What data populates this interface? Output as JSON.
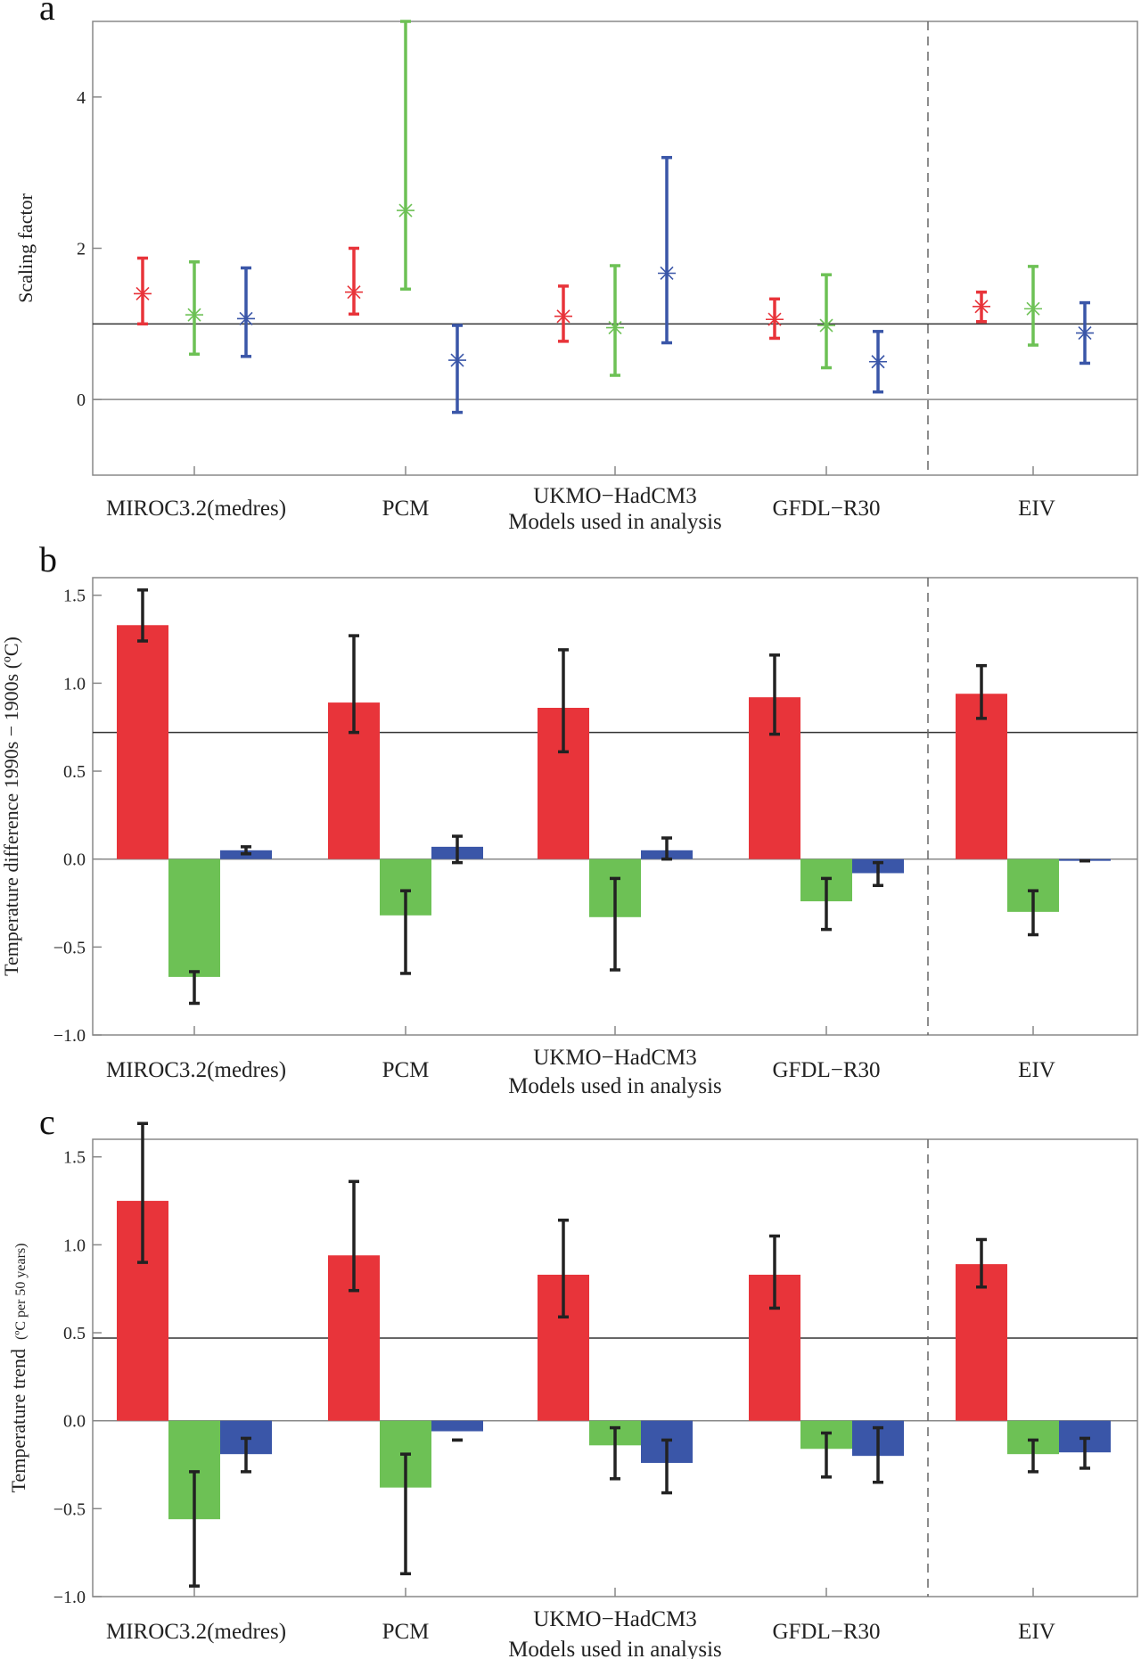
{
  "colors": {
    "red": "#e8343a",
    "green": "#6dc155",
    "blue": "#3a56a8",
    "err": "#222222"
  },
  "chart_data": [
    {
      "panel": "a",
      "type": "scatter",
      "ylabel": "Scaling factor",
      "xlabel": "Models used in analysis",
      "categories": [
        "MIROC3.2(medres)",
        "PCM",
        "UKMO−HadCM3",
        "GFDL−R30",
        "EIV"
      ],
      "ylim": [
        -1,
        5
      ],
      "yticks": [
        0,
        2,
        4
      ],
      "reference_lines": [
        0,
        1
      ],
      "series": [
        {
          "color": "red",
          "values": [
            1.4,
            1.42,
            1.1,
            1.06,
            1.23
          ],
          "lower": [
            1.0,
            1.13,
            0.77,
            0.81,
            1.03
          ],
          "upper": [
            1.87,
            2.0,
            1.5,
            1.33,
            1.42
          ]
        },
        {
          "color": "green",
          "values": [
            1.12,
            2.5,
            0.95,
            0.98,
            1.2
          ],
          "lower": [
            0.6,
            1.46,
            0.32,
            0.42,
            0.72
          ],
          "upper": [
            1.82,
            5.0,
            1.77,
            1.65,
            1.76
          ]
        },
        {
          "color": "blue",
          "values": [
            1.07,
            0.52,
            1.67,
            0.5,
            0.88
          ],
          "lower": [
            0.57,
            -0.17,
            0.75,
            0.1,
            0.48
          ],
          "upper": [
            1.74,
            0.98,
            3.2,
            0.9,
            1.28
          ]
        }
      ]
    },
    {
      "panel": "b",
      "type": "bar",
      "ylabel": "Temperature difference 1990s − 1900s (ºC)",
      "xlabel": "Models used in analysis",
      "categories": [
        "MIROC3.2(medres)",
        "PCM",
        "UKMO−HadCM3",
        "GFDL−R30",
        "EIV"
      ],
      "ylim": [
        -1.0,
        1.6
      ],
      "yticks": [
        -1.0,
        -0.5,
        0.0,
        0.5,
        1.0,
        1.5
      ],
      "ytick_labels": [
        "−1.0",
        "−0.5",
        "0.0",
        "0.5",
        "1.0",
        "1.5"
      ],
      "reference_lines": [
        0,
        0.72
      ],
      "series": [
        {
          "color": "red",
          "values": [
            1.33,
            0.89,
            0.86,
            0.92,
            0.94
          ],
          "lower": [
            1.24,
            0.72,
            0.61,
            0.71,
            0.8
          ],
          "upper": [
            1.53,
            1.27,
            1.19,
            1.16,
            1.1
          ]
        },
        {
          "color": "green",
          "values": [
            -0.67,
            -0.32,
            -0.33,
            -0.24,
            -0.3
          ],
          "lower": [
            -0.82,
            -0.65,
            -0.63,
            -0.4,
            -0.43
          ],
          "upper": [
            -0.64,
            -0.18,
            -0.11,
            -0.11,
            -0.18
          ]
        },
        {
          "color": "blue",
          "values": [
            0.05,
            0.07,
            0.05,
            -0.08,
            -0.01
          ],
          "lower": [
            0.03,
            -0.02,
            0.0,
            -0.15,
            -0.01
          ],
          "upper": [
            0.07,
            0.13,
            0.12,
            -0.02,
            -0.01
          ]
        }
      ]
    },
    {
      "panel": "c",
      "type": "bar",
      "ylabel": "Temperature trend",
      "ylabel_unit": "(ºC per 50 years)",
      "xlabel": "Models used in analysis",
      "categories": [
        "MIROC3.2(medres)",
        "PCM",
        "UKMO−HadCM3",
        "GFDL−R30",
        "EIV"
      ],
      "ylim": [
        -1.0,
        1.6
      ],
      "yticks": [
        -1.0,
        -0.5,
        0.0,
        0.5,
        1.0,
        1.5
      ],
      "ytick_labels": [
        "−1.0",
        "−0.5",
        "0.0",
        "0.5",
        "1.0",
        "1.5"
      ],
      "reference_lines": [
        0,
        0.47
      ],
      "series": [
        {
          "color": "red",
          "values": [
            1.25,
            0.94,
            0.83,
            0.83,
            0.89
          ],
          "lower": [
            0.9,
            0.74,
            0.59,
            0.64,
            0.76
          ],
          "upper": [
            1.69,
            1.36,
            1.14,
            1.05,
            1.03
          ]
        },
        {
          "color": "green",
          "values": [
            -0.56,
            -0.38,
            -0.14,
            -0.16,
            -0.19
          ],
          "lower": [
            -0.94,
            -0.87,
            -0.33,
            -0.32,
            -0.29
          ],
          "upper": [
            -0.29,
            -0.19,
            -0.04,
            -0.07,
            -0.11
          ]
        },
        {
          "color": "blue",
          "values": [
            -0.19,
            -0.06,
            -0.24,
            -0.2,
            -0.18
          ],
          "lower": [
            -0.29,
            -0.11,
            -0.41,
            -0.35,
            -0.27
          ],
          "upper": [
            -0.1,
            -0.11,
            -0.11,
            -0.04,
            -0.1
          ]
        }
      ]
    }
  ]
}
